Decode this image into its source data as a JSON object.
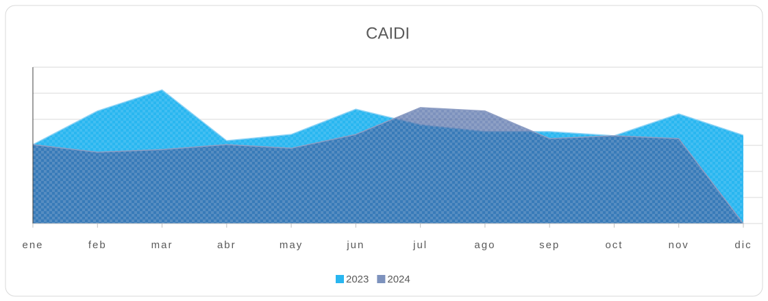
{
  "chart_data": {
    "type": "area",
    "title": "CAIDI",
    "categories": [
      "ene",
      "feb",
      "mar",
      "abr",
      "may",
      "jun",
      "jul",
      "ago",
      "sep",
      "oct",
      "nov",
      "dic"
    ],
    "series": [
      {
        "name": "2023",
        "color": "#29b6f0",
        "values": [
          30.3,
          43.2,
          51.3,
          31.8,
          34.2,
          43.9,
          37.9,
          35.3,
          35.3,
          33.7,
          42.1,
          33.9
        ]
      },
      {
        "name": "2024",
        "color": "#3f5f9e",
        "values": [
          30.3,
          27.4,
          28.4,
          30.3,
          28.9,
          34.2,
          44.5,
          43.2,
          32.6,
          33.7,
          32.6,
          0
        ]
      }
    ],
    "ylim": [
      0,
      60
    ],
    "yticks": [
      0,
      10,
      20,
      30,
      40,
      50,
      60
    ],
    "grid": true,
    "legend": "bottom"
  }
}
